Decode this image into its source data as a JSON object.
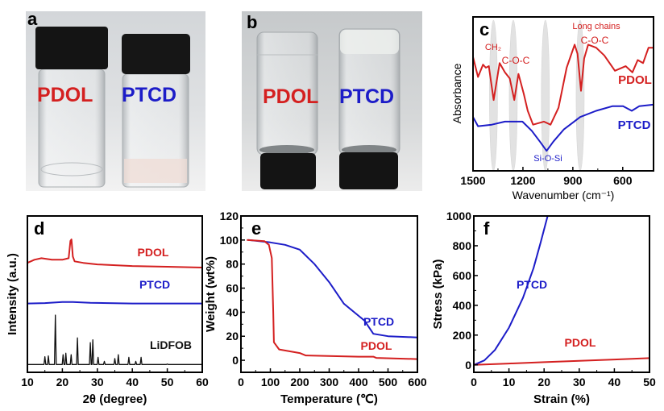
{
  "colors": {
    "pdol": "#d42020",
    "ptcd": "#1c1cc8",
    "ref": "#111111",
    "band": "#d9d9d9"
  },
  "photos": [
    {
      "label": "a",
      "vials": [
        "PDOL",
        "PTCD"
      ]
    },
    {
      "label": "b",
      "vials": [
        "PDOL",
        "PTCD"
      ]
    }
  ],
  "chart_data": [
    {
      "panel": "c",
      "type": "line",
      "xlabel": "Wavenumber (cm⁻¹)",
      "ylabel": "Absorbance",
      "xlim": [
        1500,
        415
      ],
      "reversed_x": true,
      "ylim": [
        0,
        100
      ],
      "xticks": [
        1500,
        1200,
        900,
        600
      ],
      "yticks": [],
      "grid": false,
      "bands": [
        1377,
        1258,
        1065,
        856
      ],
      "annotations": [
        "CH₂",
        "C-O-C",
        "Long chains",
        "C-O-C",
        "Si-O-Si"
      ],
      "series": [
        {
          "name": "PDOL",
          "x": [
            1500,
            1470,
            1440,
            1423,
            1405,
            1376,
            1340,
            1308,
            1279,
            1252,
            1227,
            1195,
            1171,
            1139,
            1074,
            1034,
            986,
            937,
            889,
            872,
            851,
            832,
            808,
            760,
            711,
            647,
            582,
            542,
            510,
            478,
            445,
            418
          ],
          "y": [
            74,
            61,
            69,
            67,
            68,
            46,
            70,
            64,
            60,
            46,
            63,
            50,
            39,
            30,
            32,
            30,
            41,
            67,
            82,
            76,
            52,
            73,
            82,
            80,
            75,
            65,
            68,
            64,
            72,
            70,
            80,
            80
          ]
        },
        {
          "name": "PTCD",
          "x": [
            1500,
            1470,
            1387,
            1308,
            1203,
            1147,
            1098,
            1058,
            1017,
            953,
            856,
            760,
            663,
            598,
            546,
            501,
            418
          ],
          "y": [
            35,
            29,
            30,
            32,
            32,
            26,
            19,
            13,
            19,
            27,
            35,
            39,
            42,
            42,
            39,
            42,
            43
          ]
        }
      ]
    },
    {
      "panel": "d",
      "type": "line",
      "xlabel": "2θ (degree)",
      "ylabel": "Intensity (a.u.)",
      "xlim": [
        10,
        60
      ],
      "ylim": [
        0,
        100
      ],
      "xticks": [
        10,
        20,
        30,
        40,
        50,
        60
      ],
      "yticks": [],
      "grid": false,
      "series": [
        {
          "name": "PDOL",
          "x": [
            10,
            12,
            14,
            17,
            20,
            21.8,
            22.3,
            22.6,
            23,
            23.5,
            26,
            30,
            40,
            50,
            60
          ],
          "y": [
            70,
            72,
            73,
            72,
            72,
            73,
            84,
            85,
            74,
            71,
            70,
            69,
            68,
            67.5,
            67
          ]
        },
        {
          "name": "PTCD",
          "x": [
            10,
            15,
            20,
            23,
            28,
            40,
            60
          ],
          "y": [
            44,
            44.3,
            45,
            45,
            44.5,
            44,
            44
          ]
        },
        {
          "name": "LiDFOB",
          "baseline": 5,
          "peaks_x": [
            15,
            16,
            18,
            20.2,
            21,
            22.5,
            24.3,
            28,
            28.7,
            30.2,
            32,
            35,
            36,
            39,
            41,
            42.5,
            50
          ],
          "peaks_y": [
            10,
            10.5,
            36.6,
            11.3,
            12.2,
            11.3,
            22,
            19,
            20.8,
            9.6,
            7,
            8.8,
            11.3,
            9.6,
            7,
            9.6,
            5.3
          ]
        }
      ]
    },
    {
      "panel": "e",
      "type": "line",
      "xlabel": "Temperature (℃)",
      "ylabel": "Weight (wt%)",
      "xlim": [
        0,
        600
      ],
      "ylim": [
        -10,
        120
      ],
      "xticks": [
        0,
        100,
        200,
        300,
        400,
        500,
        600
      ],
      "yticks": [
        0,
        20,
        40,
        60,
        80,
        100,
        120
      ],
      "grid": false,
      "series": [
        {
          "name": "PTCD",
          "x": [
            25,
            100,
            150,
            200,
            250,
            300,
            350,
            400,
            420,
            450,
            500,
            600
          ],
          "y": [
            100,
            98,
            96,
            92,
            80,
            65,
            47,
            37,
            33,
            22,
            20,
            19
          ]
        },
        {
          "name": "PDOL",
          "x": [
            20,
            80,
            95,
            105,
            110,
            112,
            130,
            200,
            220,
            400,
            450,
            460,
            600
          ],
          "y": [
            100,
            99,
            96,
            85,
            40,
            15,
            9,
            6,
            4,
            3,
            3,
            2,
            1
          ]
        }
      ]
    },
    {
      "panel": "f",
      "type": "line",
      "xlabel": "Strain (%)",
      "ylabel": "Stress (kPa)",
      "xlim": [
        0,
        50
      ],
      "ylim": [
        -50,
        1000
      ],
      "xticks": [
        0,
        10,
        20,
        30,
        40,
        50
      ],
      "yticks": [
        0,
        200,
        400,
        600,
        800,
        1000
      ],
      "grid": false,
      "series": [
        {
          "name": "PTCD",
          "x": [
            0,
            3,
            6,
            10,
            14,
            17,
            19,
            21
          ],
          "y": [
            0,
            30,
            100,
            250,
            450,
            650,
            820,
            1000
          ]
        },
        {
          "name": "PDOL",
          "x": [
            0,
            10,
            20,
            30,
            40,
            50
          ],
          "y": [
            0,
            9,
            18,
            27,
            36,
            45
          ]
        }
      ]
    }
  ]
}
